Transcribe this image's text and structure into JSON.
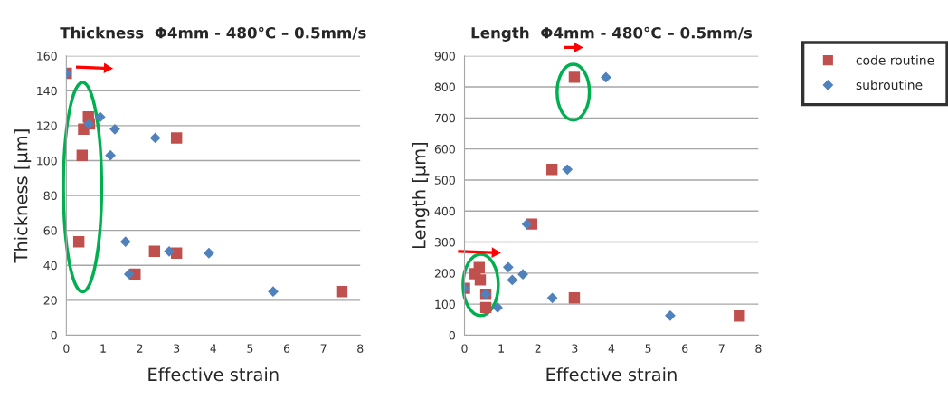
{
  "chart_data": [
    {
      "type": "scatter",
      "title": "Thickness  Φ4mm - 480°C – 0.5mm/s",
      "xlabel": "Effective strain",
      "ylabel": "Thickness [µm]",
      "xlim": [
        0,
        8
      ],
      "xticks": [
        0,
        1,
        2,
        3,
        4,
        5,
        6,
        7,
        8
      ],
      "ylim": [
        0,
        160
      ],
      "yticks": [
        0,
        20,
        40,
        60,
        80,
        100,
        120,
        140,
        160
      ],
      "grid": "y",
      "series": [
        {
          "color": "#c0504d",
          "marker": "square",
          "x": [
            0,
            0.6,
            0.63,
            0.47,
            0.43,
            0.34,
            1.87,
            2.4,
            3.0,
            3.0,
            7.5
          ],
          "values": [
            150,
            125,
            121,
            118,
            103,
            53.5,
            35,
            48,
            47,
            113,
            25
          ]
        },
        {
          "color": "#4f81bd",
          "marker": "diamond",
          "x": [
            0,
            0.61,
            0.92,
            1.32,
            1.2,
            2.42,
            1.61,
            1.71,
            2.8,
            3.88,
            5.63
          ],
          "values": [
            150,
            121,
            125,
            118,
            103,
            113,
            53.5,
            35,
            48,
            47,
            25
          ]
        }
      ]
    },
    {
      "type": "scatter",
      "title": "Length  Φ4mm - 480°C – 0.5mm/s",
      "xlabel": "Effective strain",
      "ylabel": "Length [µm]",
      "xlim": [
        0,
        8
      ],
      "xticks": [
        0,
        1,
        2,
        3,
        4,
        5,
        6,
        7,
        8
      ],
      "ylim": [
        0,
        900
      ],
      "yticks": [
        0,
        100,
        200,
        300,
        400,
        500,
        600,
        700,
        800,
        900
      ],
      "grid": "y",
      "legend": "right",
      "series": [
        {
          "name": "code routine",
          "color": "#c0504d",
          "marker": "square",
          "x": [
            0,
            0.29,
            0.4,
            0.43,
            0.58,
            0.58,
            1.83,
            2.38,
            2.99,
            2.99,
            7.48
          ],
          "values": [
            151,
            198,
            218,
            178,
            132,
            89,
            358,
            534,
            831,
            120,
            62
          ]
        },
        {
          "name": "subroutine",
          "color": "#4f81bd",
          "marker": "diamond",
          "x": [
            0,
            0.58,
            0.9,
            1.19,
            1.3,
            1.59,
            1.7,
            2.39,
            2.8,
            3.85,
            5.6
          ],
          "values": [
            151,
            132,
            89,
            219,
            178,
            196,
            358,
            120,
            534,
            831,
            63
          ]
        }
      ]
    }
  ]
}
